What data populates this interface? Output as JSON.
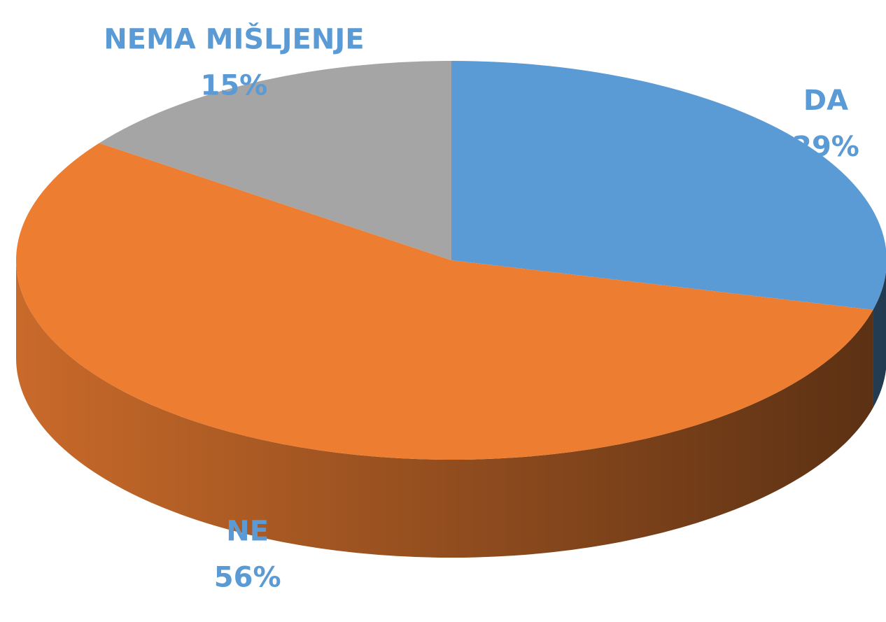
{
  "chart_data": {
    "type": "pie",
    "categories": [
      "DA",
      "NE",
      "NEMA MIŠLJENJE"
    ],
    "values": [
      29,
      56,
      15
    ],
    "value_labels": [
      "29%",
      "56%",
      "15%"
    ],
    "colors": [
      "#5b9bd5",
      "#ed7d31",
      "#a5a5a5"
    ],
    "label_color": "#5b9bd5"
  }
}
